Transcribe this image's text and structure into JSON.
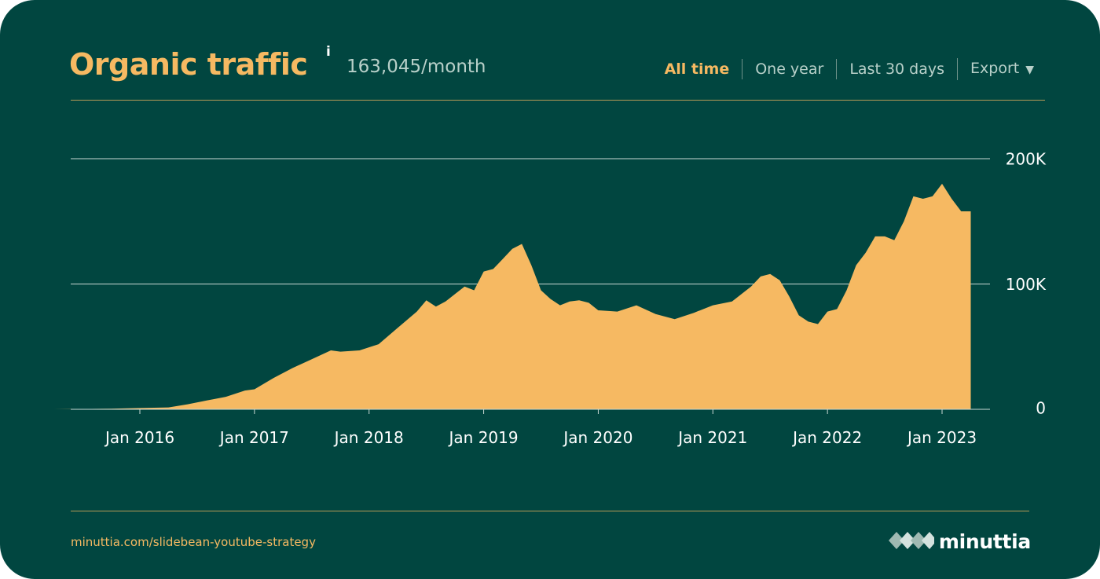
{
  "header": {
    "title": "Organic traffic",
    "info_mark": "i",
    "subtitle": "163,045/month",
    "tabs": [
      {
        "label": "All time",
        "active": true
      },
      {
        "label": "One year",
        "active": false
      },
      {
        "label": "Last 30 days",
        "active": false
      }
    ],
    "export_label": "Export"
  },
  "footer": {
    "link": "minuttia.com/slidebean-youtube-strategy",
    "brand": "minuttia"
  },
  "colors": {
    "background": "#014640",
    "accent": "#F6B962",
    "muted_text": "#B8D0C9",
    "rule": "#B59A56"
  },
  "chart_data": {
    "type": "area",
    "title": "",
    "xlabel": "",
    "ylabel": "",
    "ylim": [
      0,
      200000
    ],
    "grid": true,
    "y_ticks": [
      {
        "value": 0,
        "label": "0"
      },
      {
        "value": 100000,
        "label": "100K"
      },
      {
        "value": 200000,
        "label": "200K"
      }
    ],
    "x_ticks": [
      {
        "value": "2016-01",
        "label": "Jan 2016"
      },
      {
        "value": "2017-01",
        "label": "Jan 2017"
      },
      {
        "value": "2018-01",
        "label": "Jan 2018"
      },
      {
        "value": "2019-01",
        "label": "Jan 2019"
      },
      {
        "value": "2020-01",
        "label": "Jan 2020"
      },
      {
        "value": "2021-01",
        "label": "Jan 2021"
      },
      {
        "value": "2022-01",
        "label": "Jan 2022"
      },
      {
        "value": "2023-01",
        "label": "Jan 2023"
      }
    ],
    "series": [
      {
        "values": [
          [
            "2015-04",
            0
          ],
          [
            "2015-10",
            500
          ],
          [
            "2016-01",
            1000
          ],
          [
            "2016-04",
            1500
          ],
          [
            "2016-06",
            4000
          ],
          [
            "2016-08",
            7000
          ],
          [
            "2016-10",
            10000
          ],
          [
            "2016-12",
            15000
          ],
          [
            "2017-01",
            16000
          ],
          [
            "2017-03",
            25000
          ],
          [
            "2017-05",
            33000
          ],
          [
            "2017-07",
            40000
          ],
          [
            "2017-09",
            47000
          ],
          [
            "2017-10",
            46000
          ],
          [
            "2017-12",
            47000
          ],
          [
            "2018-02",
            52000
          ],
          [
            "2018-04",
            65000
          ],
          [
            "2018-06",
            78000
          ],
          [
            "2018-07",
            87000
          ],
          [
            "2018-08",
            82000
          ],
          [
            "2018-09",
            86000
          ],
          [
            "2018-10",
            92000
          ],
          [
            "2018-11",
            98000
          ],
          [
            "2018-12",
            95000
          ],
          [
            "2019-01",
            110000
          ],
          [
            "2019-02",
            112000
          ],
          [
            "2019-03",
            120000
          ],
          [
            "2019-04",
            128000
          ],
          [
            "2019-05",
            132000
          ],
          [
            "2019-06",
            115000
          ],
          [
            "2019-07",
            95000
          ],
          [
            "2019-08",
            88000
          ],
          [
            "2019-09",
            83000
          ],
          [
            "2019-10",
            86000
          ],
          [
            "2019-11",
            87000
          ],
          [
            "2019-12",
            85000
          ],
          [
            "2020-01",
            79000
          ],
          [
            "2020-03",
            78000
          ],
          [
            "2020-05",
            83000
          ],
          [
            "2020-07",
            76000
          ],
          [
            "2020-09",
            72000
          ],
          [
            "2020-11",
            77000
          ],
          [
            "2021-01",
            83000
          ],
          [
            "2021-03",
            86000
          ],
          [
            "2021-05",
            98000
          ],
          [
            "2021-06",
            106000
          ],
          [
            "2021-07",
            108000
          ],
          [
            "2021-08",
            103000
          ],
          [
            "2021-09",
            90000
          ],
          [
            "2021-10",
            75000
          ],
          [
            "2021-11",
            70000
          ],
          [
            "2021-12",
            68000
          ],
          [
            "2022-01",
            78000
          ],
          [
            "2022-02",
            80000
          ],
          [
            "2022-03",
            95000
          ],
          [
            "2022-04",
            115000
          ],
          [
            "2022-05",
            125000
          ],
          [
            "2022-06",
            138000
          ],
          [
            "2022-07",
            138000
          ],
          [
            "2022-08",
            135000
          ],
          [
            "2022-09",
            150000
          ],
          [
            "2022-10",
            170000
          ],
          [
            "2022-11",
            168000
          ],
          [
            "2022-12",
            170000
          ],
          [
            "2023-01",
            180000
          ],
          [
            "2023-02",
            168000
          ],
          [
            "2023-03",
            158000
          ],
          [
            "2023-04",
            158000
          ]
        ]
      }
    ]
  }
}
